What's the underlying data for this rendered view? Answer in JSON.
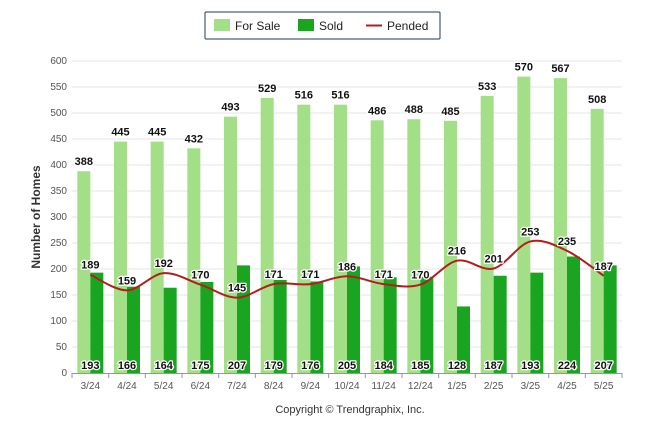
{
  "chart_data": {
    "type": "bar",
    "ylabel": "Number of Homes",
    "xlabel": "",
    "title": "",
    "ylim": [
      0,
      600
    ],
    "y_ticks": [
      0,
      50,
      100,
      150,
      200,
      250,
      300,
      350,
      400,
      450,
      500,
      550,
      600
    ],
    "grid": true,
    "legend_position": "top-center",
    "categories": [
      "3/24",
      "4/24",
      "5/24",
      "6/24",
      "7/24",
      "8/24",
      "9/24",
      "10/24",
      "11/24",
      "12/24",
      "1/25",
      "2/25",
      "3/25",
      "4/25",
      "5/25"
    ],
    "series": [
      {
        "name": "For Sale",
        "type": "bar",
        "color": "#a2df86",
        "values": [
          388,
          445,
          445,
          432,
          493,
          529,
          516,
          516,
          486,
          488,
          485,
          533,
          570,
          567,
          508
        ]
      },
      {
        "name": "Sold",
        "type": "bar",
        "color": "#1aa521",
        "values": [
          193,
          166,
          164,
          175,
          207,
          179,
          176,
          205,
          184,
          185,
          128,
          187,
          193,
          224,
          207
        ]
      },
      {
        "name": "Pended",
        "type": "line",
        "color": "#b51c1c",
        "values": [
          189,
          159,
          192,
          170,
          145,
          171,
          171,
          186,
          171,
          170,
          216,
          201,
          253,
          235,
          187
        ]
      }
    ]
  },
  "footer": {
    "copyright": "Copyright © Trendgraphix, Inc."
  }
}
